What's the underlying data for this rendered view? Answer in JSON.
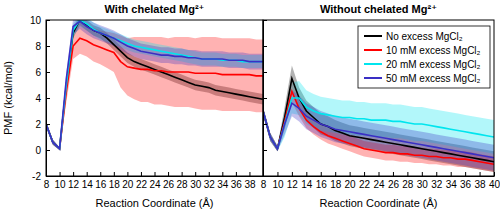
{
  "chart_data": [
    {
      "type": "line",
      "title": "With chelated Mg²⁺",
      "x_label": "Reaction Coordinate (Å)",
      "y_label": "PMF (kcal/mol)",
      "x": [
        8,
        9,
        10,
        11,
        12,
        13,
        14,
        15,
        16,
        17,
        18,
        19,
        20,
        21,
        22,
        23,
        24,
        25,
        26,
        27,
        28,
        29,
        30,
        31,
        32,
        33,
        34,
        35,
        36,
        37,
        38,
        39,
        40
      ],
      "xlim": [
        8,
        40
      ],
      "xticks": [
        8,
        10,
        12,
        14,
        16,
        18,
        20,
        22,
        24,
        26,
        28,
        30,
        32,
        34,
        36,
        38
      ],
      "ylim": [
        -2,
        10
      ],
      "yticks": [
        -2,
        0,
        2,
        4,
        6,
        8,
        10
      ],
      "series": [
        {
          "name": "No excess MgCl₂",
          "color": "#000000",
          "values": [
            2.0,
            0.6,
            0.1,
            5.0,
            9.0,
            10.0,
            9.6,
            9.2,
            9.0,
            8.6,
            8.1,
            7.6,
            7.1,
            6.8,
            6.6,
            6.4,
            6.2,
            6.0,
            5.8,
            5.6,
            5.4,
            5.2,
            5.0,
            4.9,
            4.8,
            4.6,
            4.5,
            4.4,
            4.3,
            4.2,
            4.1,
            4.0,
            3.9
          ],
          "errors": [
            0.2,
            0.2,
            0.1,
            0.3,
            0.4,
            0.4,
            0.4,
            0.4,
            0.4,
            0.4,
            0.4,
            0.4,
            0.4,
            0.4,
            0.4,
            0.4,
            0.4,
            0.4,
            0.4,
            0.4,
            0.4,
            0.4,
            0.4,
            0.4,
            0.4,
            0.4,
            0.4,
            0.4,
            0.4,
            0.4,
            0.4,
            0.4,
            0.4
          ]
        },
        {
          "name": "10 mM excess MgCl₂",
          "color": "#ff0000",
          "values": [
            2.0,
            0.6,
            0.1,
            4.5,
            8.0,
            8.6,
            8.4,
            8.1,
            7.9,
            7.7,
            7.5,
            6.8,
            6.4,
            6.3,
            6.2,
            6.2,
            6.1,
            6.1,
            6.0,
            6.0,
            6.0,
            6.0,
            5.9,
            5.9,
            5.9,
            5.9,
            5.8,
            5.8,
            5.8,
            5.8,
            5.8,
            5.7,
            5.7
          ],
          "errors": [
            0.2,
            0.2,
            0.1,
            0.8,
            1.0,
            1.2,
            1.2,
            1.3,
            1.3,
            1.4,
            1.5,
            2.0,
            2.2,
            2.4,
            2.5,
            2.5,
            2.6,
            2.6,
            2.6,
            2.7,
            2.7,
            2.7,
            2.7,
            2.8,
            2.8,
            2.8,
            2.8,
            2.8,
            2.8,
            2.8,
            2.8,
            2.8,
            2.8
          ]
        },
        {
          "name": "20 mM excess MgCl₂",
          "color": "#00e5ee",
          "values": [
            2.0,
            0.6,
            0.1,
            5.0,
            9.2,
            10.0,
            9.7,
            9.3,
            9.0,
            8.8,
            8.6,
            8.4,
            8.2,
            8.0,
            7.9,
            7.8,
            7.7,
            7.6,
            7.5,
            7.4,
            7.3,
            7.2,
            7.1,
            7.0,
            7.0,
            7.0,
            6.9,
            6.9,
            6.9,
            6.8,
            6.8,
            6.8,
            6.8
          ],
          "errors": [
            0.2,
            0.2,
            0.1,
            0.4,
            0.5,
            0.5,
            0.5,
            0.5,
            0.5,
            0.5,
            0.5,
            0.5,
            0.5,
            0.5,
            0.5,
            0.5,
            0.5,
            0.5,
            0.5,
            0.5,
            0.5,
            0.5,
            0.5,
            0.5,
            0.5,
            0.5,
            0.5,
            0.5,
            0.5,
            0.5,
            0.5,
            0.5,
            0.5
          ]
        },
        {
          "name": "50 mM excess MgCl₂",
          "color": "#3a2fc4",
          "values": [
            2.0,
            0.6,
            0.1,
            5.5,
            9.5,
            9.9,
            9.5,
            9.2,
            9.0,
            8.8,
            8.6,
            8.3,
            8.0,
            7.8,
            7.6,
            7.5,
            7.4,
            7.3,
            7.3,
            7.2,
            7.2,
            7.1,
            7.1,
            7.0,
            7.0,
            7.0,
            7.0,
            6.9,
            6.9,
            6.9,
            6.8,
            6.8,
            6.8
          ],
          "errors": [
            0.2,
            0.2,
            0.1,
            0.5,
            0.6,
            0.6,
            0.6,
            0.6,
            0.6,
            0.6,
            0.6,
            0.6,
            0.6,
            0.6,
            0.6,
            0.6,
            0.6,
            0.6,
            0.6,
            0.6,
            0.6,
            0.6,
            0.6,
            0.6,
            0.6,
            0.6,
            0.6,
            0.6,
            0.6,
            0.6,
            0.6,
            0.6,
            0.6
          ]
        }
      ]
    },
    {
      "type": "line",
      "title": "Without chelated Mg²⁺",
      "x_label": "Reaction Coordinate (Å)",
      "x": [
        8,
        9,
        10,
        11,
        12,
        13,
        14,
        15,
        16,
        17,
        18,
        19,
        20,
        21,
        22,
        23,
        24,
        25,
        26,
        27,
        28,
        29,
        30,
        31,
        32,
        33,
        34,
        35,
        36,
        37,
        38,
        39,
        40
      ],
      "xlim": [
        8,
        40
      ],
      "xticks": [
        8,
        10,
        12,
        14,
        16,
        18,
        20,
        22,
        24,
        26,
        28,
        30,
        32,
        34,
        36,
        38,
        40
      ],
      "ylim": [
        -2,
        10
      ],
      "yticks": [
        -2,
        0,
        2,
        4,
        6,
        8,
        10
      ],
      "tick_labels": "x",
      "legend": "upper right",
      "series": [
        {
          "name": "No excess MgCl₂",
          "color": "#000000",
          "values": [
            3.0,
            1.0,
            0.1,
            2.5,
            5.5,
            4.0,
            3.0,
            2.5,
            2.0,
            1.8,
            1.5,
            1.3,
            1.1,
            1.0,
            0.9,
            0.8,
            0.7,
            0.6,
            0.5,
            0.4,
            0.3,
            0.2,
            0.1,
            0.0,
            -0.1,
            -0.2,
            -0.3,
            -0.4,
            -0.5,
            -0.6,
            -0.7,
            -0.8,
            -0.9
          ],
          "errors": [
            0.3,
            0.3,
            0.2,
            0.8,
            1.0,
            0.8,
            0.8,
            0.8,
            0.8,
            0.8,
            0.8,
            0.8,
            0.8,
            0.8,
            0.8,
            0.8,
            0.8,
            0.8,
            0.8,
            0.8,
            0.8,
            0.8,
            0.8,
            0.8,
            0.8,
            0.8,
            0.8,
            0.8,
            0.8,
            0.8,
            0.8,
            0.8,
            0.8
          ]
        },
        {
          "name": "10 mM excess MgCl₂",
          "color": "#ff0000",
          "values": [
            3.0,
            1.0,
            0.1,
            2.2,
            4.5,
            3.2,
            2.3,
            1.8,
            1.4,
            1.1,
            0.9,
            0.7,
            0.5,
            0.3,
            0.1,
            0.0,
            -0.1,
            -0.2,
            -0.2,
            -0.3,
            -0.3,
            -0.4,
            -0.4,
            -0.5,
            -0.5,
            -0.6,
            -0.6,
            -0.7,
            -0.7,
            -0.8,
            -0.9,
            -1.0,
            -1.1
          ],
          "errors": [
            0.3,
            0.3,
            0.2,
            0.6,
            0.8,
            0.6,
            0.6,
            0.6,
            0.6,
            0.6,
            0.6,
            0.6,
            0.6,
            0.6,
            0.6,
            0.6,
            0.6,
            0.6,
            0.6,
            0.6,
            0.6,
            0.6,
            0.6,
            0.6,
            0.6,
            0.6,
            0.6,
            0.6,
            0.6,
            0.6,
            0.6,
            0.6,
            0.6
          ]
        },
        {
          "name": "20 mM excess MgCl₂",
          "color": "#00e5ee",
          "values": [
            3.0,
            1.0,
            0.1,
            2.0,
            4.0,
            4.0,
            3.3,
            3.0,
            2.8,
            2.7,
            2.6,
            2.5,
            2.5,
            2.4,
            2.4,
            2.3,
            2.3,
            2.3,
            2.2,
            2.2,
            2.1,
            2.0,
            2.0,
            1.9,
            1.8,
            1.7,
            1.6,
            1.5,
            1.4,
            1.3,
            1.2,
            1.1,
            1.0
          ],
          "errors": [
            0.3,
            0.3,
            0.2,
            1.0,
            1.2,
            1.3,
            1.3,
            1.3,
            1.3,
            1.3,
            1.3,
            1.3,
            1.3,
            1.3,
            1.3,
            1.3,
            1.3,
            1.3,
            1.3,
            1.3,
            1.3,
            1.3,
            1.3,
            1.3,
            1.3,
            1.3,
            1.3,
            1.3,
            1.3,
            1.3,
            1.3,
            1.3,
            1.3
          ]
        },
        {
          "name": "50 mM excess MgCl₂",
          "color": "#3a2fc4",
          "values": [
            3.0,
            1.0,
            0.1,
            2.0,
            3.6,
            3.2,
            2.6,
            2.3,
            2.0,
            1.8,
            1.6,
            1.5,
            1.4,
            1.3,
            1.2,
            1.1,
            1.0,
            0.9,
            0.8,
            0.7,
            0.6,
            0.5,
            0.4,
            0.3,
            0.2,
            0.1,
            0.0,
            -0.1,
            -0.2,
            -0.3,
            -0.4,
            -0.5,
            -0.6
          ],
          "errors": [
            0.3,
            0.3,
            0.2,
            0.8,
            1.0,
            1.0,
            1.0,
            1.0,
            1.0,
            1.0,
            1.0,
            1.0,
            1.0,
            1.0,
            1.0,
            1.0,
            1.0,
            1.0,
            1.0,
            1.0,
            1.0,
            1.0,
            1.0,
            1.0,
            1.0,
            1.0,
            1.0,
            1.0,
            1.0,
            1.0,
            1.0,
            1.0,
            1.0
          ]
        }
      ]
    }
  ]
}
